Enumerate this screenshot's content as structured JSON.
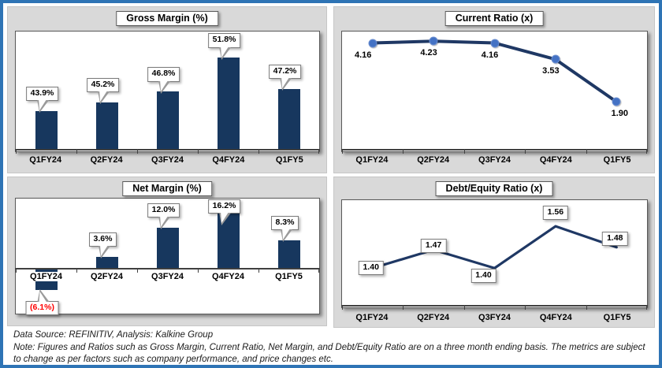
{
  "footer": {
    "source_line": "Data Source: REFINITIV, Analysis: Kalkine Group",
    "note_line": "Note: Figures and Ratios such as Gross Margin, Current Ratio, Net Margin, and Debt/Equity Ratio are on a three month ending basis. The metrics are subject to change as per factors such as company performance, and price changes etc."
  },
  "colors": {
    "frame_border": "#2E74B5",
    "panel_background": "#D9D9D9",
    "bar_navy": "#17375E",
    "line_navy": "#1F3864",
    "marker_blue": "#4472C4",
    "negative_label_red": "#FF0000",
    "axis_dark": "#404040"
  },
  "chart_data": [
    {
      "id": "gross-margin",
      "type": "bar",
      "title": "Gross Margin (%)",
      "categories": [
        "Q1FY24",
        "Q2FY24",
        "Q3FY24",
        "Q4FY24",
        "Q1FY5"
      ],
      "values": [
        43.9,
        45.2,
        46.8,
        51.8,
        47.2
      ],
      "labels": [
        "43.9%",
        "45.2%",
        "46.8%",
        "51.8%",
        "47.2%"
      ],
      "ylim": [
        38,
        55.7
      ],
      "baseline": 38,
      "grid": false,
      "label_style": "callout"
    },
    {
      "id": "current-ratio",
      "type": "line",
      "title": "Current Ratio (x)",
      "categories": [
        "Q1FY24",
        "Q2FY24",
        "Q3FY24",
        "Q4FY24",
        "Q1FY5"
      ],
      "values": [
        4.16,
        4.23,
        4.16,
        3.53,
        1.9
      ],
      "labels": [
        "4.16",
        "4.23",
        "4.16",
        "3.53",
        "1.90"
      ],
      "ylim": [
        0,
        4.6
      ],
      "markers": true,
      "grid": false,
      "label_style": "plain",
      "label_pos": [
        "below-left",
        "below",
        "below",
        "below",
        "below-right"
      ]
    },
    {
      "id": "net-margin",
      "type": "bar",
      "title": "Net Margin (%)",
      "categories": [
        "Q1FY24",
        "Q2FY24",
        "Q3FY24",
        "Q4FY24",
        "Q1FY5"
      ],
      "values": [
        -6.1,
        3.6,
        12.0,
        16.2,
        8.3
      ],
      "labels": [
        "(6.1%)",
        "3.6%",
        "12.0%",
        "16.2%",
        "8.3%"
      ],
      "ylim": [
        -13,
        20.5
      ],
      "baseline": 0,
      "labels_inside": true,
      "grid": false,
      "label_style": "callout"
    },
    {
      "id": "debt-equity",
      "type": "line",
      "title": "Debt/Equity Ratio (x)",
      "categories": [
        "Q1FY24",
        "Q2FY24",
        "Q3FY24",
        "Q4FY24",
        "Q1FY5"
      ],
      "values": [
        1.4,
        1.47,
        1.4,
        1.56,
        1.48
      ],
      "labels": [
        "1.40",
        "1.47",
        "1.40",
        "1.56",
        "1.48"
      ],
      "ylim": [
        1.25,
        1.66
      ],
      "markers": false,
      "grid": false,
      "label_style": "box",
      "label_pos": [
        "center",
        "center-high",
        "below-left",
        "above",
        "above-left"
      ]
    }
  ]
}
